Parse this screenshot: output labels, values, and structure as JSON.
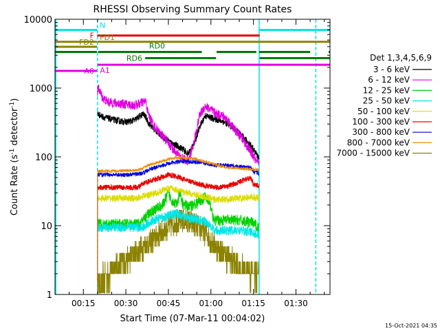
{
  "chart_data": {
    "type": "line",
    "title": "RHESSI Observing Summary Count Rates",
    "xlabel": "Start Time (07-Mar-11 00:04:02)",
    "ylabel_main": "Count Rate (s",
    "ylabel_sup1": "-1",
    "ylabel_mid": " detector",
    "ylabel_sup2": "-1",
    "ylabel_end": ")",
    "timestamp": "15-Oct-2021 04:35",
    "y_scale": "log",
    "ylim": [
      1,
      10000
    ],
    "xlim_minutes": [
      5,
      102
    ],
    "x_ticks": [
      {
        "m": 15,
        "label": "00:15"
      },
      {
        "m": 30,
        "label": "00:30"
      },
      {
        "m": 45,
        "label": "00:45"
      },
      {
        "m": 60,
        "label": "01:00"
      },
      {
        "m": 75,
        "label": "01:15"
      },
      {
        "m": 90,
        "label": "01:30"
      }
    ],
    "y_ticks": [
      {
        "v": 1,
        "label": "1"
      },
      {
        "v": 10,
        "label": "10"
      },
      {
        "v": 100,
        "label": "100"
      },
      {
        "v": 1000,
        "label": "1000"
      },
      {
        "v": 10000,
        "label": "10000"
      }
    ],
    "legend": {
      "title": "Det 1,3,4,5,6,9",
      "placement": "right"
    },
    "series": [
      {
        "name": "3 - 6 keV",
        "color": "#000000",
        "x": [
          20,
          20.5,
          22,
          25,
          28,
          30,
          33,
          36,
          37,
          38,
          40,
          43,
          46,
          50,
          52,
          54,
          56,
          58,
          60,
          62,
          64,
          66,
          68,
          70,
          72,
          74,
          76,
          77
        ],
        "y": [
          430,
          410,
          380,
          350,
          330,
          320,
          340,
          420,
          380,
          310,
          250,
          200,
          160,
          130,
          110,
          150,
          270,
          400,
          370,
          350,
          330,
          300,
          260,
          220,
          180,
          150,
          110,
          95
        ]
      },
      {
        "name": "6 - 12 keV",
        "color": "#e100e1",
        "x": [
          20,
          20.5,
          21,
          22,
          24,
          27,
          30,
          33,
          36,
          37,
          38,
          40,
          42,
          44,
          46,
          48,
          50,
          52,
          54,
          56,
          58,
          60,
          62,
          64,
          66,
          68,
          70,
          72,
          74,
          76,
          77
        ],
        "y": [
          900,
          1000,
          850,
          700,
          620,
          600,
          580,
          560,
          620,
          640,
          400,
          280,
          220,
          180,
          140,
          110,
          95,
          85,
          160,
          400,
          550,
          480,
          420,
          400,
          340,
          260,
          210,
          160,
          120,
          85,
          75
        ]
      },
      {
        "name": "12 - 25 keV",
        "color": "#00d200",
        "x": [
          20,
          22,
          25,
          30,
          33,
          35,
          38,
          41,
          43,
          45,
          46,
          48,
          49,
          50,
          52,
          55,
          58,
          60,
          61,
          62,
          65,
          70,
          75,
          77
        ],
        "y": [
          11,
          10.5,
          10.5,
          10.5,
          10.5,
          10.5,
          15,
          18,
          20,
          30,
          24,
          20,
          30,
          21,
          19,
          21,
          26,
          19,
          11.5,
          12,
          12,
          12,
          11,
          9
        ]
      },
      {
        "name": "25 - 50 keV",
        "color": "#00e6e6",
        "x": [
          20,
          25,
          30,
          34,
          36,
          38,
          41,
          45,
          48,
          50,
          52,
          54,
          56,
          58,
          60,
          61,
          62,
          65,
          70,
          75,
          77
        ],
        "y": [
          9.5,
          9.5,
          9.5,
          9.5,
          9.5,
          11,
          12.5,
          14,
          15,
          14,
          13,
          12.5,
          12,
          11.5,
          10,
          8.5,
          8.5,
          8.5,
          8.5,
          8,
          7
        ]
      },
      {
        "name": "50 - 100 keV",
        "color": "#dcdc00",
        "x": [
          20,
          25,
          30,
          34,
          36,
          38,
          41,
          44,
          46,
          48,
          50,
          53,
          56,
          58,
          60,
          61,
          62,
          65,
          70,
          75,
          77
        ],
        "y": [
          25,
          25,
          25,
          25,
          27,
          28,
          30,
          34,
          35,
          33,
          31,
          29,
          27,
          26,
          25,
          24,
          24,
          24,
          25,
          26,
          25
        ]
      },
      {
        "name": "100 - 300 keV",
        "color": "#e60000",
        "x": [
          20,
          25,
          30,
          34,
          36,
          38,
          42,
          45,
          48,
          50,
          53,
          56,
          58,
          60,
          62,
          65,
          68,
          71,
          74,
          75,
          77
        ],
        "y": [
          36,
          36,
          36,
          36,
          40,
          44,
          50,
          55,
          52,
          48,
          43,
          40,
          38,
          37,
          36,
          37,
          40,
          45,
          50,
          40,
          38
        ]
      },
      {
        "name": "300 - 800 keV",
        "color": "#0000dc",
        "x": [
          20,
          25,
          30,
          34,
          36,
          38,
          42,
          46,
          50,
          54,
          57,
          60,
          62,
          66,
          70,
          74,
          75,
          77
        ],
        "y": [
          55,
          55,
          55,
          56,
          58,
          65,
          74,
          82,
          86,
          85,
          82,
          78,
          76,
          75,
          72,
          70,
          60,
          58
        ]
      },
      {
        "name": "800 - 7000 keV",
        "color": "#f08c00",
        "x": [
          20,
          25,
          30,
          34,
          36,
          38,
          42,
          46,
          50,
          54,
          57,
          60,
          62,
          66,
          70,
          74,
          75,
          77
        ],
        "y": [
          62,
          62,
          63,
          64,
          68,
          76,
          85,
          95,
          98,
          94,
          88,
          80,
          76,
          70,
          68,
          66,
          66,
          65
        ]
      },
      {
        "name": "7000 - 15000 keV",
        "color": "#8c8200",
        "x": [
          20,
          24,
          28,
          32,
          35,
          38,
          41,
          44,
          47,
          50,
          52,
          55,
          58,
          61,
          64,
          67,
          70,
          73,
          75,
          77
        ],
        "y": [
          1.5,
          2,
          2.8,
          3.5,
          4.5,
          5.5,
          7,
          9,
          11,
          12,
          11.5,
          10,
          8,
          5.5,
          4,
          3.2,
          2.5,
          2.2,
          2,
          2
        ]
      }
    ],
    "vertical_lines": [
      {
        "m": 5.3,
        "style": "solid",
        "color": "#00e6e6"
      },
      {
        "m": 20,
        "style": "dashed",
        "color": "#00e6e6"
      },
      {
        "m": 77,
        "style": "solid",
        "color": "#00e6e6"
      },
      {
        "m": 97,
        "style": "dashed",
        "color": "#00e6e6"
      }
    ],
    "flag_bars": [
      {
        "label": "N",
        "color": "#00e6e6",
        "value": 7000,
        "segments": [
          [
            5,
            19.9
          ],
          [
            76.9,
            102
          ]
        ],
        "label_side": "right",
        "label_m": 20.8
      },
      {
        "label": "F",
        "color": "#e60000",
        "value": 5800,
        "segments": [
          [
            19.9,
            77.2
          ]
        ],
        "label_side": "left",
        "label_m": 18.8
      },
      {
        "label": "FD1",
        "color": "#8c8200",
        "value": 4700,
        "segments": [
          [
            20,
            102
          ]
        ],
        "label_side": "right",
        "label_m": 20.8
      },
      {
        "label": "FD2",
        "color": "#8c8200",
        "value": 4700,
        "segments": [
          [
            5,
            19.8
          ]
        ],
        "label_side": "left",
        "label_m": 18.8
      },
      {
        "label": "",
        "color": "#8c8200",
        "value": 3980,
        "segments": [
          [
            5,
            19.8
          ]
        ],
        "label_side": "none",
        "label_m": 0
      },
      {
        "label": "RD0",
        "color": "#007800",
        "value": 3350,
        "segments": [
          [
            5,
            19.8
          ],
          [
            20.2,
            56.8
          ],
          [
            62,
            76
          ],
          [
            77,
            95
          ],
          [
            101.5,
            102
          ]
        ],
        "label_side": "above",
        "label_m": 41
      },
      {
        "label": "RD6",
        "color": "#007800",
        "value": 2720,
        "segments": [
          [
            36.8,
            61.8
          ],
          [
            77.2,
            102
          ]
        ],
        "label_side": "left",
        "label_m": 35.8
      },
      {
        "label": "A0",
        "color": "#e100e1",
        "value": 1780,
        "segments": [
          [
            5,
            19.8
          ]
        ],
        "label_side": "left",
        "label_m": 18.8
      },
      {
        "label": "A1",
        "color": "#e100e1",
        "value": 2180,
        "segments": [
          [
            20,
            102
          ]
        ],
        "label_side": "below",
        "label_m": 22.6
      }
    ]
  }
}
